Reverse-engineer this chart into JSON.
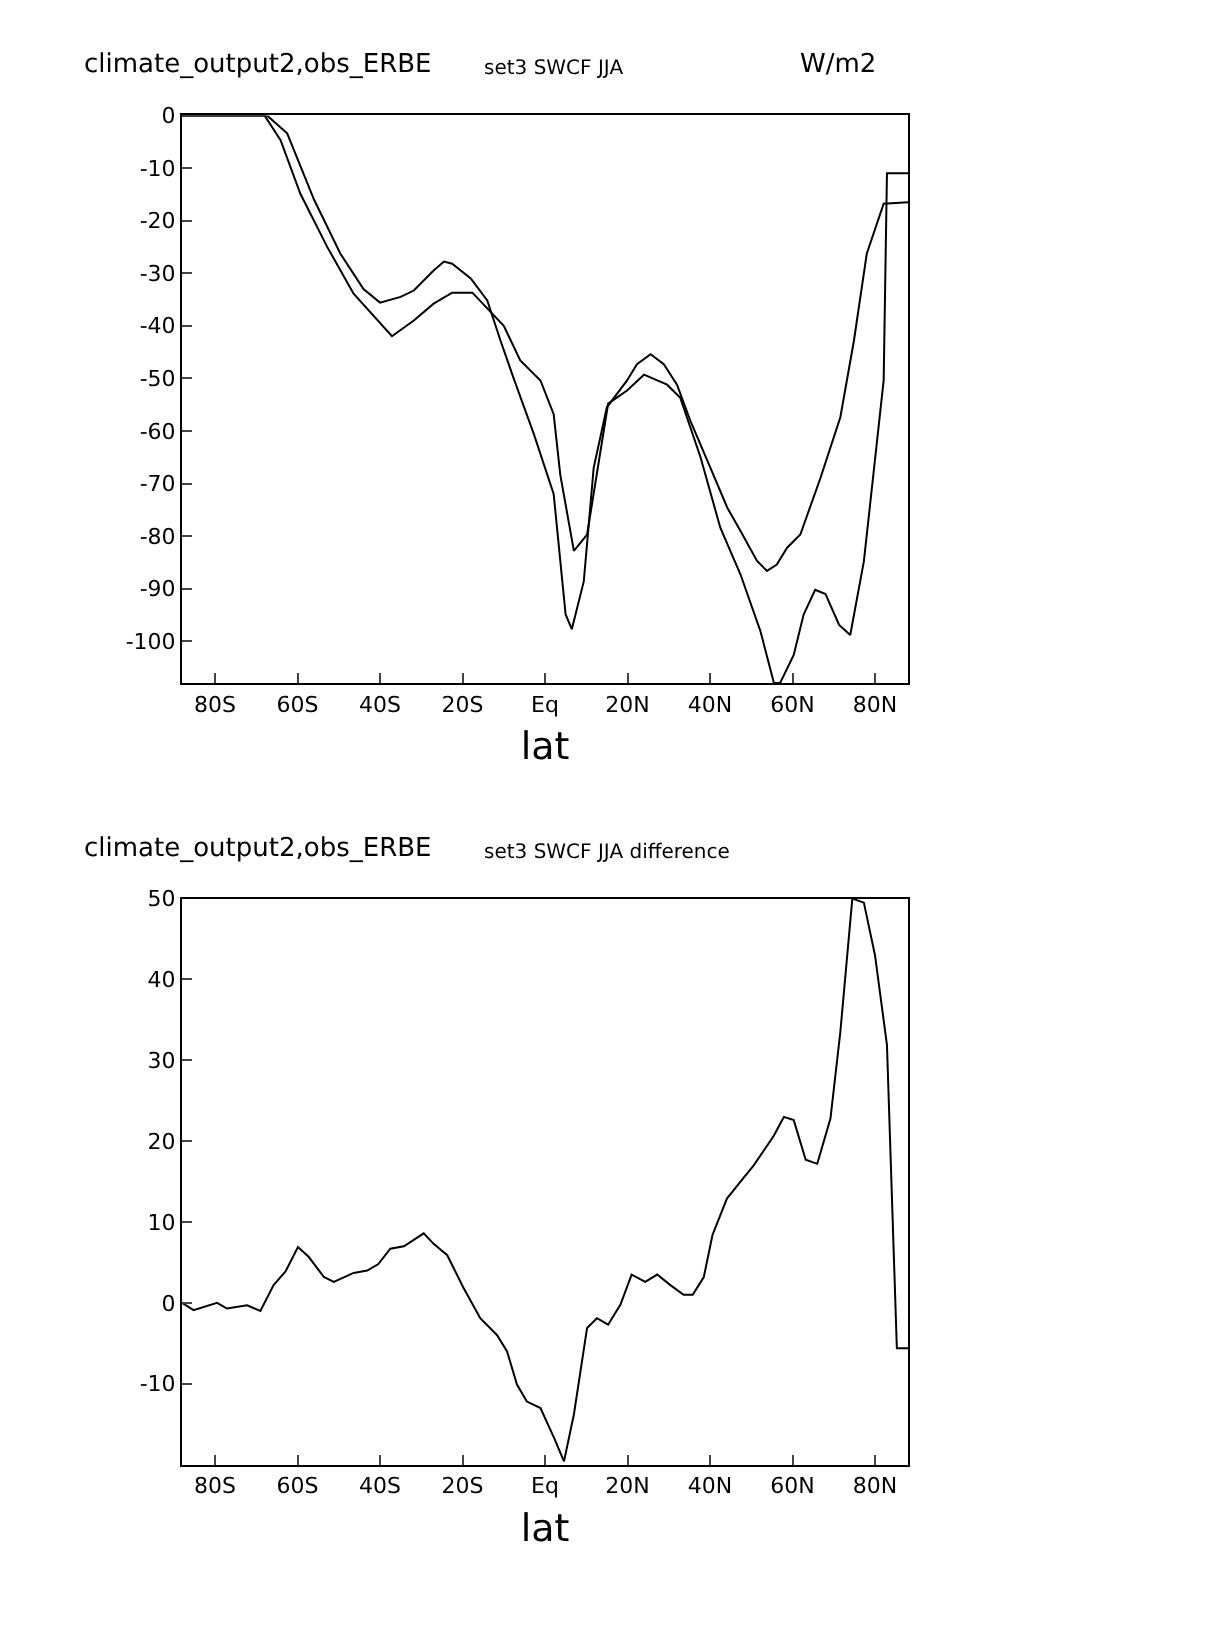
{
  "chart_data": [
    {
      "type": "line",
      "title": "climate_output2,obs_ERBE",
      "subtitle": "set3 SWCF JJA",
      "xlabel": "lat",
      "annotations": [
        "W/m2"
      ],
      "xlim": [
        -88,
        88
      ],
      "xticks": [
        {
          "value": -80,
          "label": "80S"
        },
        {
          "value": -60,
          "label": "60S"
        },
        {
          "value": -40,
          "label": "40S"
        },
        {
          "value": -20,
          "label": "20S"
        },
        {
          "value": 0,
          "label": "Eq"
        },
        {
          "value": 20,
          "label": "20N"
        },
        {
          "value": 40,
          "label": "40N"
        },
        {
          "value": 60,
          "label": "60N"
        },
        {
          "value": 80,
          "label": "80N"
        }
      ],
      "ylim": [
        -108,
        0
      ],
      "yticks": [
        0,
        -10,
        -20,
        -30,
        -40,
        -50,
        -60,
        -70,
        -80,
        -90,
        -100
      ],
      "series": [
        {
          "color": "#000000",
          "x": [
            -88,
            -67.4,
            -62.5,
            -56,
            -49.6,
            -44,
            -40,
            -35,
            -31.8,
            -27,
            -24.5,
            -22.5,
            -18,
            -14,
            -10.8,
            -7.6,
            -2.7,
            2.1,
            5,
            6.5,
            9.4,
            11.8,
            15,
            19.9,
            22.3,
            25.6,
            28.8,
            32,
            35.3,
            40.1,
            44.2,
            47.4,
            51.4,
            53.8,
            56.2,
            58.7,
            61.9,
            66.8,
            71.6,
            74.9,
            78,
            82.1,
            88
          ],
          "values": [
            0,
            0,
            -3.4,
            -16,
            -26.3,
            -33,
            -35.6,
            -34.5,
            -33.3,
            -29.5,
            -27.8,
            -28.2,
            -31,
            -35.2,
            -42.8,
            -50,
            -60.6,
            -72,
            -94.9,
            -97.7,
            -88.6,
            -67,
            -55.5,
            -50.4,
            -47.3,
            -45.4,
            -47.3,
            -51.2,
            -58.2,
            -67,
            -74.6,
            -79,
            -84.7,
            -86.6,
            -85.4,
            -82.2,
            -79.7,
            -68.9,
            -57.4,
            -42.8,
            -26.3,
            -16.8,
            -16.5
          ]
        },
        {
          "color": "#000000",
          "x": [
            -88,
            -68,
            -64.1,
            -59.3,
            -52.8,
            -46.4,
            -37.1,
            -31.8,
            -27,
            -22.5,
            -17.6,
            -10,
            -6,
            -1.1,
            2.1,
            3.7,
            7,
            10.2,
            12.6,
            15.3,
            19.9,
            24,
            29.6,
            32.8,
            37.7,
            42.5,
            47.4,
            52.2,
            55.5,
            57,
            60.3,
            62.7,
            65.5,
            68,
            71.3,
            74,
            77.3,
            82.1,
            82.9,
            88
          ],
          "values": [
            0,
            0,
            -4.7,
            -14.9,
            -25,
            -33.9,
            -42,
            -39,
            -35.8,
            -33.7,
            -33.7,
            -40,
            -46.6,
            -50.4,
            -56.8,
            -68.3,
            -82.8,
            -79.7,
            -68,
            -54.8,
            -52.3,
            -49.3,
            -51.2,
            -53.7,
            -65,
            -78.4,
            -87.3,
            -98,
            -107.9,
            -107.9,
            -102.6,
            -94.9,
            -90.2,
            -91,
            -96.9,
            -98.8,
            -84.8,
            -50.4,
            -11,
            -11
          ]
        }
      ]
    },
    {
      "type": "line",
      "title": "climate_output2,obs_ERBE",
      "subtitle": "set3 SWCF JJA difference",
      "xlabel": "lat",
      "xlim": [
        -88,
        88
      ],
      "xticks": [
        {
          "value": -80,
          "label": "80S"
        },
        {
          "value": -60,
          "label": "60S"
        },
        {
          "value": -40,
          "label": "40S"
        },
        {
          "value": -20,
          "label": "20S"
        },
        {
          "value": 0,
          "label": "Eq"
        },
        {
          "value": 20,
          "label": "20N"
        },
        {
          "value": 40,
          "label": "40N"
        },
        {
          "value": 60,
          "label": "60N"
        },
        {
          "value": 80,
          "label": "80N"
        }
      ],
      "ylim": [
        -20,
        50
      ],
      "yticks": [
        -10,
        0,
        10,
        20,
        30,
        40,
        50
      ],
      "series": [
        {
          "color": "#000000",
          "x": [
            -88,
            -85.2,
            -79.5,
            -77.1,
            -72.2,
            -69,
            -65.8,
            -62.9,
            -59.9,
            -57.3,
            -53.6,
            -51.2,
            -46.4,
            -43.1,
            -40.4,
            -37.5,
            -34.2,
            -29.4,
            -27,
            -23.7,
            -19.7,
            -15.7,
            -11.6,
            -9.2,
            -6.8,
            -4.4,
            -1.1,
            2.2,
            4.6,
            7,
            10.2,
            12.6,
            15.3,
            18.3,
            21,
            24.3,
            27.2,
            30.4,
            33.6,
            35.8,
            38.5,
            40.6,
            44.1,
            47.4,
            50.6,
            55.5,
            57.9,
            60.3,
            63.2,
            66,
            69.2,
            71.6,
            74.5,
            77.3,
            80,
            82.9,
            85.3,
            88
          ],
          "values": [
            0,
            -0.9,
            0,
            -0.7,
            -0.3,
            -1,
            2.2,
            3.9,
            6.9,
            5.7,
            3.2,
            2.6,
            3.7,
            4,
            4.8,
            6.7,
            7,
            8.6,
            7.3,
            5.9,
            1.8,
            -1.9,
            -4,
            -6,
            -10.1,
            -12.2,
            -13,
            -16.7,
            -19.6,
            -13.8,
            -3.1,
            -1.9,
            -2.7,
            -0.2,
            3.5,
            2.6,
            3.5,
            2.2,
            1,
            1,
            3.2,
            8.4,
            12.9,
            15,
            17,
            20.7,
            23,
            22.6,
            17.7,
            17.2,
            22.8,
            33.5,
            50,
            49.5,
            43,
            31.9,
            -5.6,
            -5.6
          ]
        }
      ]
    }
  ]
}
